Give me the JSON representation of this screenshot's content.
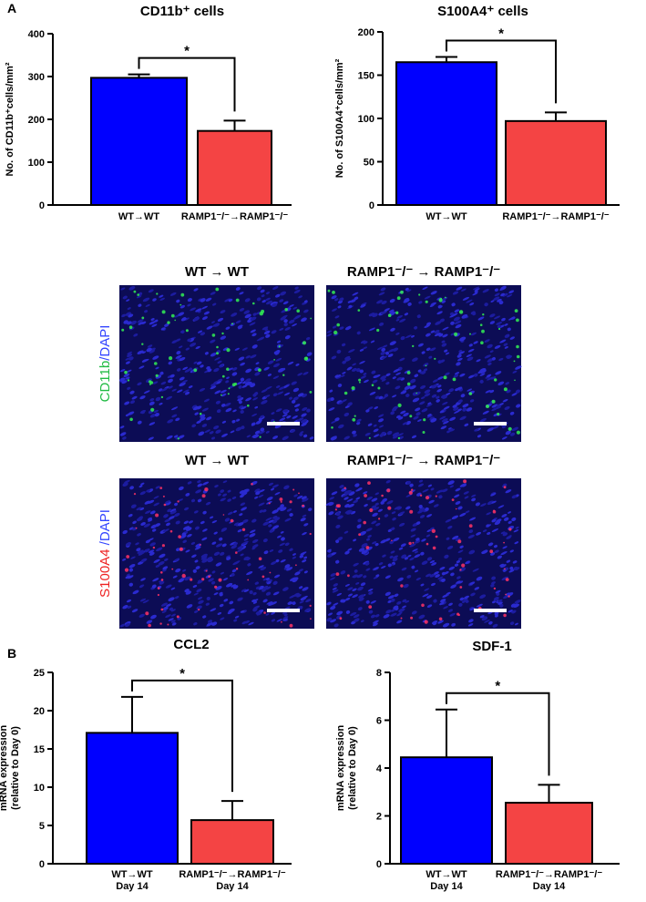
{
  "panel_labels": [
    "A",
    "B"
  ],
  "chart_data": [
    {
      "type": "bar",
      "title": "CD11b⁺ cells",
      "ylabel": [
        "No. of CD11b⁺cells/mm²"
      ],
      "categories": [
        "WT→WT",
        "RAMP1⁻/⁻→RAMP1⁻/⁻"
      ],
      "values": [
        297,
        173
      ],
      "errors": [
        8,
        24
      ],
      "colors": [
        "#0000ff",
        "#f44444"
      ],
      "ylim": [
        0,
        400
      ],
      "yticks": [
        0,
        100,
        200,
        300,
        400
      ],
      "annotation": "*"
    },
    {
      "type": "bar",
      "title": "S100A4⁺ cells",
      "ylabel": [
        "No. of S100A4⁺cells/mm²"
      ],
      "categories": [
        "WT→WT",
        "RAMP1⁻/⁻→RAMP1⁻/⁻"
      ],
      "values": [
        165,
        97
      ],
      "errors": [
        6,
        10
      ],
      "colors": [
        "#0000ff",
        "#f44444"
      ],
      "ylim": [
        0,
        200
      ],
      "yticks": [
        0,
        50,
        100,
        150,
        200
      ],
      "annotation": "*"
    },
    {
      "type": "bar",
      "title": "CCL2",
      "ylabel": [
        "mRNA expression",
        "(relative to Day 0)"
      ],
      "categories": [
        [
          "WT→WT",
          "Day 14"
        ],
        [
          "RAMP1⁻/⁻→RAMP1⁻/⁻",
          "Day 14"
        ]
      ],
      "values": [
        17.1,
        5.7
      ],
      "errors": [
        4.7,
        2.5
      ],
      "colors": [
        "#0000ff",
        "#f44444"
      ],
      "ylim": [
        0,
        25
      ],
      "yticks": [
        0,
        5,
        10,
        15,
        20,
        25
      ],
      "annotation": "*"
    },
    {
      "type": "bar",
      "title": "SDF-1",
      "ylabel": [
        "mRNA expression",
        "(relative to Day 0)"
      ],
      "categories": [
        [
          "WT→WT",
          "Day 14"
        ],
        [
          "RAMP1⁻/⁻→RAMP1⁻/⁻",
          "Day 14"
        ]
      ],
      "values": [
        4.45,
        2.55
      ],
      "errors": [
        2.0,
        0.75
      ],
      "colors": [
        "#0000ff",
        "#f44444"
      ],
      "ylim": [
        0,
        8
      ],
      "yticks": [
        0,
        2,
        4,
        6,
        8
      ],
      "annotation": "*"
    }
  ],
  "micrographs": [
    {
      "stain_label": [
        "CD11b",
        "/DAPI"
      ],
      "titles": [
        "WT → WT",
        "RAMP1⁻/⁻ → RAMP1⁻/⁻"
      ]
    },
    {
      "stain_label": [
        "S100A4",
        " /DAPI"
      ],
      "titles": [
        "WT → WT",
        "RAMP1⁻/⁻ → RAMP1⁻/⁻"
      ]
    }
  ]
}
